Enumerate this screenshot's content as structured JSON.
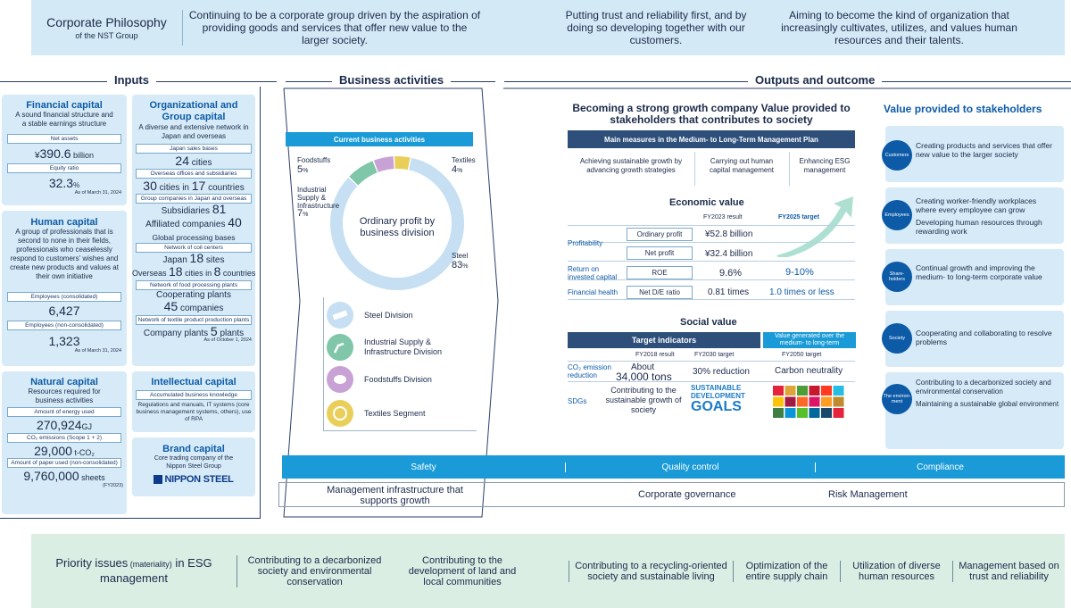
{
  "philosophy": {
    "title": "Corporate Philosophy",
    "subtitle": "of the NST Group",
    "items": [
      "Continuing to be a corporate group driven by the aspiration of providing goods and services that offer new value to the larger society.",
      "Putting trust and reliability first, and by doing so developing together with our customers.",
      "Aiming to become the kind of organization that increasingly cultivates, utilizes, and values human resources and their talents."
    ]
  },
  "headers": {
    "inputs": "Inputs",
    "business": "Business activities",
    "outputs": "Outputs and outcome"
  },
  "financial": {
    "title": "Financial capital",
    "desc": "A sound financial structure and a stable earnings structure",
    "net_assets_label": "Net assets",
    "net_assets_prefix": "¥",
    "net_assets": "390.6",
    "net_assets_unit": " billion",
    "equity_label": "Equity ratio",
    "equity": "32.3",
    "equity_unit": "%",
    "asof": "As of March 31, 2024"
  },
  "human": {
    "title": "Human capital",
    "desc": "A group of professionals that is second to none in their fields, professionals who ceaselessly respond to customers' wishes and create new products and values at their own initiative",
    "emp_cons_label": "Employees (consolidated)",
    "emp_cons": "6,427",
    "emp_non_label": "Employees (non-consolidated)",
    "emp_non": "1,323",
    "asof": "As of March 31, 2024"
  },
  "natural": {
    "title": "Natural capital",
    "desc": "Resources required for business activities",
    "energy_label": "Amount of energy used",
    "energy": "270,924",
    "energy_unit": "GJ",
    "co2_label": "CO₂ emissions (Scope 1 + 2)",
    "co2": "29,000",
    "co2_unit": " t-CO₂",
    "paper_label": "Amount of paper used (non-consolidated)",
    "paper": "9,760,000",
    "paper_unit": " sheets",
    "fy": "(FY2023)"
  },
  "org": {
    "title": "Organizational and Group capital",
    "desc": "A diverse and extensive network in Japan and overseas",
    "jp_sales_label": "Japan sales bases",
    "jp_sales": "24",
    "jp_sales_unit": " cities",
    "overseas_label": "Overseas offices and subsidiaries",
    "overseas_cities": "30",
    "overseas_mid": " cities in ",
    "overseas_countries": "17",
    "overseas_unit": " countries",
    "group_label": "Group companies in Japan and overseas",
    "subs_label": "Subsidiaries ",
    "subs": "81",
    "aff_label": "Affiliated companies ",
    "aff": "40",
    "global_label": "Global processing bases",
    "coil_label": "Network of coil centers",
    "japan_label": "Japan ",
    "japan_sites": "18",
    "japan_unit": " sites",
    "overseas2_label": "Overseas ",
    "overseas2_cities": "18",
    "overseas2_mid": " cities in ",
    "overseas2_countries": "8",
    "overseas2_unit": " countries",
    "food_label": "Network of food processing plants",
    "coop_label": "Cooperating plants",
    "coop": "45",
    "coop_unit": " companies",
    "textile_label": "Network of textile product production plants",
    "company_label": "Company plants ",
    "company": "5",
    "company_unit": " plants",
    "asof": "As of October 1, 2024"
  },
  "intellectual": {
    "title": "Intellectual capital",
    "label": "Accumulated business knowledge",
    "desc": "Regulations and manuals, IT systems (core business management systems, others), use of RPA"
  },
  "brand": {
    "title": "Brand capital",
    "desc": "Core trading company of the Nippon Steel Group",
    "logo": "NIPPON STEEL"
  },
  "business": {
    "header": "Current business activities",
    "center_label": "Ordinary profit by business division",
    "divisions": [
      "Steel Division",
      "Industrial Supply & Infrastructure Division",
      "Foodstuffs Division",
      "Textiles Segment"
    ]
  },
  "chart_data": {
    "type": "pie",
    "title": "Ordinary profit by business division",
    "categories": [
      "Steel",
      "Industrial Supply & Infrastructure",
      "Foodstuffs",
      "Textiles"
    ],
    "values": [
      83,
      7,
      5,
      4
    ],
    "value_suffix": "%",
    "colors": [
      "#c6dff2",
      "#7fc7a8",
      "#c8a2d4",
      "#e9cf5a"
    ]
  },
  "outputs": {
    "headline": "Becoming a strong growth company Value provided to stakeholders that contributes to society",
    "plan_bar": "Main measures in the Medium- to Long-Term Management Plan",
    "measures": [
      "Achieving sustainable growth by advancing growth strategies",
      "Carrying out human capital management",
      "Enhancing ESG management"
    ],
    "econ_title": "Economic value",
    "fy2023": "FY2023 result",
    "fy2025": "FY2025 target",
    "profitability": "Profitability",
    "ord_label": "Ordinary profit",
    "ord_val": "¥52.8 billion",
    "net_label": "Net profit",
    "net_val": "¥32.4 billion",
    "roe_group": "Return on invested capital",
    "roe_label": "ROE",
    "roe_val": "9.6%",
    "roe_target": "9-10%",
    "fin_health": "Financial health",
    "de_label": "Net D/E ratio",
    "de_val": "0.81 times",
    "de_target": "1.0 times or less",
    "social_title": "Social value",
    "target_ind": "Target indicators",
    "long_term": "Value generated over the medium- to long-term",
    "fy2018": "FY2018 result",
    "fy2030": "FY2030 target",
    "fy2050": "FY2050 target",
    "co2_label": "CO₂ emission reduction",
    "co2_2018_pre": "About",
    "co2_2018": "34,000 tons",
    "co2_2030": "30% reduction",
    "co2_2050": "Carbon neutrality",
    "sdgs_label": "SDGs",
    "sdgs_text": "Contributing to the sustainable growth of society",
    "sdgs_logo1": "SUSTAINABLE",
    "sdgs_logo2": "DEVELOPMENT",
    "sdgs_logo3": "GOALS"
  },
  "stakeholders": {
    "title": "Value provided to stakeholders",
    "items": [
      {
        "name": "Customers",
        "lines": [
          "Creating products and services that offer new value to the larger society"
        ]
      },
      {
        "name": "Employees",
        "lines": [
          "Creating worker-friendly workplaces where every employee can grow",
          "Developing human resources through rewarding work"
        ]
      },
      {
        "name": "Share-holders",
        "lines": [
          "Continual growth and improving the medium- to long-term corporate value"
        ]
      },
      {
        "name": "Society",
        "lines": [
          "Cooperating and collaborating to resolve problems"
        ]
      },
      {
        "name": "The environ-ment",
        "lines": [
          "Contributing to a decarbonized society and environmental conservation",
          "Maintaining a sustainable global environment"
        ]
      }
    ]
  },
  "infra": {
    "bar": [
      "Safety",
      "Quality control",
      "Compliance"
    ],
    "label": "Management infrastructure that supports growth",
    "gov": "Corporate governance",
    "risk": "Risk Management"
  },
  "priority": {
    "title": "Priority issues",
    "title_small": " (materiality)",
    "title2": " in ESG management",
    "items": [
      "Contributing to a decarbonized society and environmental conservation",
      "Contributing to the development of land and local communities",
      "Contributing to a recycling-oriented society and sustainable living",
      "Optimization of the entire supply chain",
      "Utilization of diverse human resources",
      "Management based on trust and reliability"
    ]
  }
}
